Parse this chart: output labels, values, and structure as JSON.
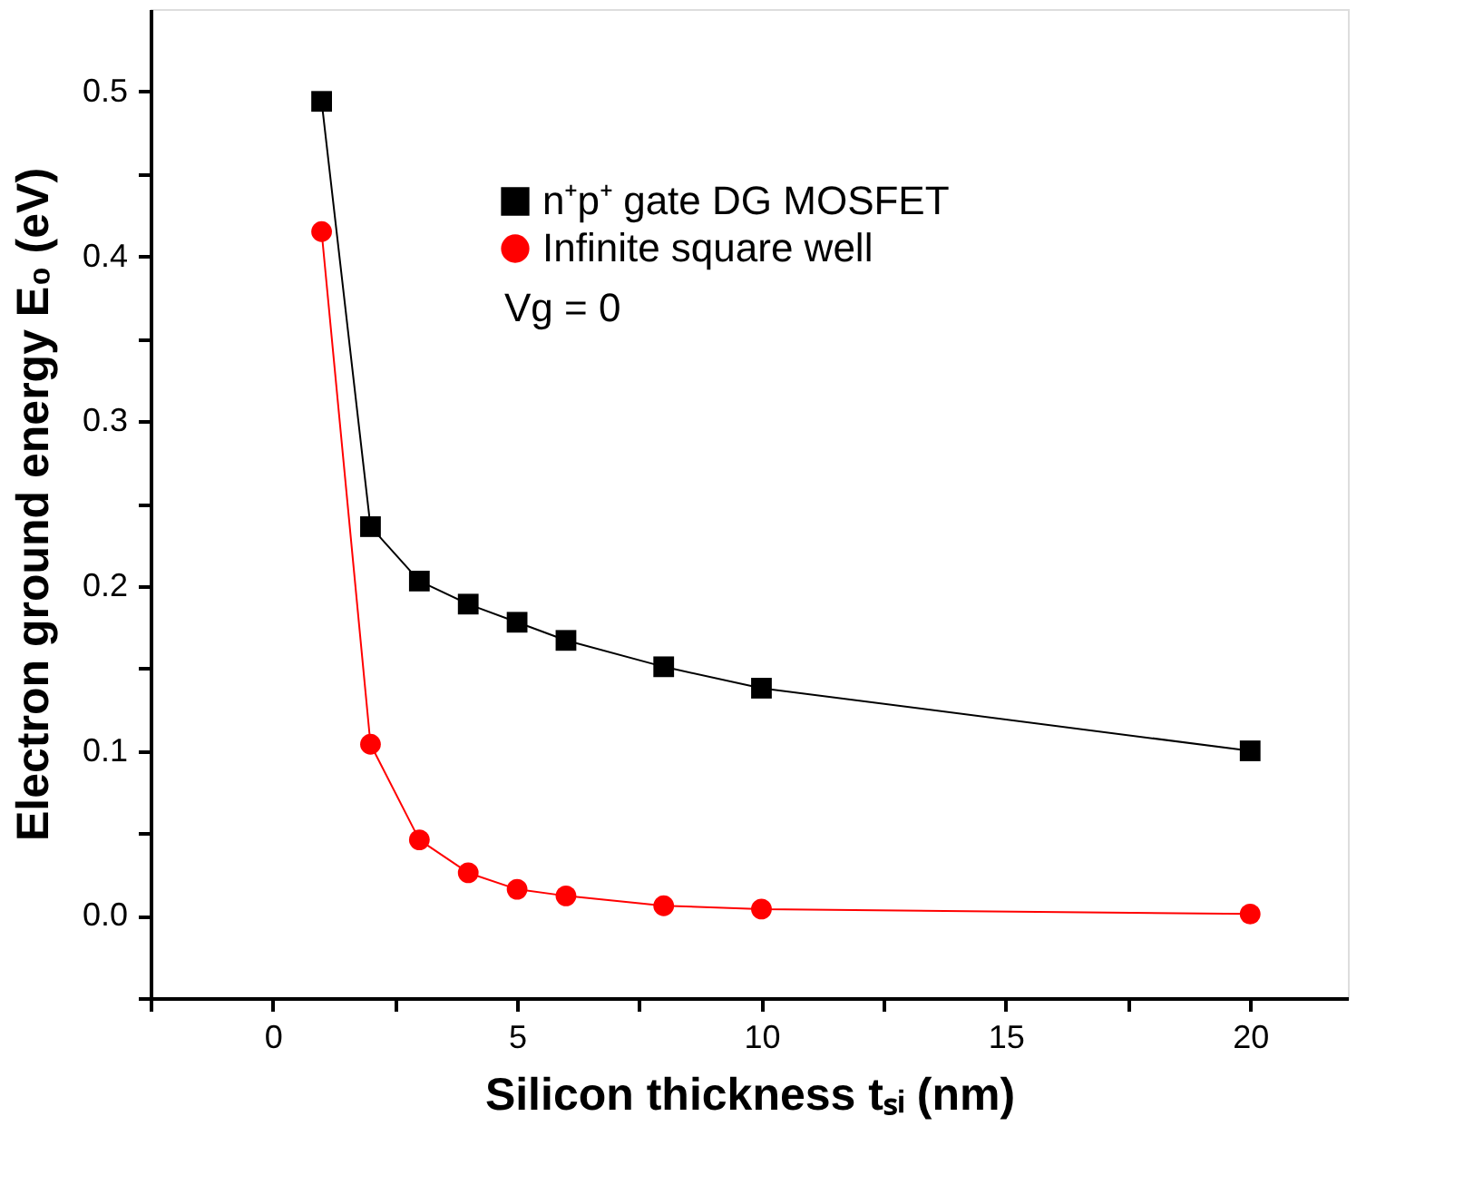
{
  "chart_data": {
    "type": "line",
    "xlabel": "Silicon thickness tₛᵢ (nm)",
    "ylabel": "Electron ground energy E₀ (eV)",
    "x": [
      1,
      2,
      3,
      4,
      5,
      6,
      8,
      10,
      20
    ],
    "series": [
      {
        "name": "n⁺p⁺ gate DG MOSFET",
        "color": "#000000",
        "marker": "square",
        "values": [
          0.494,
          0.236,
          0.203,
          0.189,
          0.178,
          0.167,
          0.151,
          0.138,
          0.1
        ]
      },
      {
        "name": "Infinite square well",
        "color": "#ff0000",
        "marker": "circle",
        "values": [
          0.415,
          0.104,
          0.046,
          0.026,
          0.016,
          0.012,
          0.006,
          0.004,
          0.001
        ]
      }
    ],
    "annotations": [
      "Vg = 0"
    ],
    "xlim": [
      -2.5,
      22
    ],
    "xticks": [
      {
        "value": -2.5,
        "label": null
      },
      0,
      {
        "value": 2.5,
        "label": null
      },
      5,
      {
        "value": 7.5,
        "label": null
      },
      10,
      {
        "value": 12.5,
        "label": null
      },
      15,
      {
        "value": 17.5,
        "label": null
      },
      20
    ],
    "ylim": [
      -0.05,
      0.55
    ],
    "yticks": [
      {
        "value": -0.05,
        "label": null
      },
      {
        "value": 0,
        "label": "0.0"
      },
      {
        "value": 0.05,
        "label": null
      },
      0.1,
      {
        "value": 0.15,
        "label": null
      },
      0.2,
      {
        "value": 0.25,
        "label": null
      },
      0.3,
      {
        "value": 0.35,
        "label": null
      },
      0.4,
      {
        "value": 0.45,
        "label": null
      },
      0.5
    ],
    "grid": false,
    "legend": "top right",
    "line_style": "solid"
  }
}
